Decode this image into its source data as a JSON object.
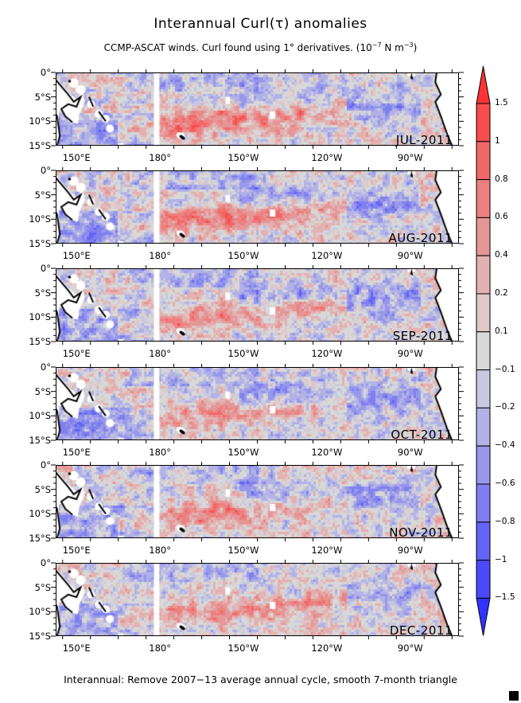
{
  "chart_data": {
    "type": "heatmap",
    "title": "Interannual Curl(τ) anomalies",
    "subtitle": {
      "text": "CCMP-ASCAT winds. Curl found using 1° derivatives. (10",
      "exp1": "−7",
      "unit": " N m",
      "exp2": "−3",
      "close": ")"
    },
    "footer": "Interannual: Remove 2007−13 average annual cycle, smooth 7-month triangle",
    "x_ticks": [
      "150°E",
      "180°",
      "150°W",
      "120°W",
      "90°W"
    ],
    "x_tick_lons": [
      150,
      180,
      210,
      240,
      270
    ],
    "x_range_lon": [
      142.5,
      287.5
    ],
    "y_ticks": [
      "0°",
      "5°S",
      "10°S",
      "15°S"
    ],
    "y_tick_lats": [
      0,
      -5,
      -10,
      -15
    ],
    "y_range_lat": [
      -15,
      0
    ],
    "panels": [
      {
        "label": "JUL-2011",
        "pattern": {
          "south_band_red": 0.75,
          "east_blue": 0.45,
          "west_blue": 0.35
        }
      },
      {
        "label": "AUG-2011",
        "pattern": {
          "south_band_red": 0.7,
          "east_blue": 0.5,
          "west_blue": 0.4
        }
      },
      {
        "label": "SEP-2011",
        "pattern": {
          "south_band_red": 0.6,
          "east_blue": 0.45,
          "west_blue": 0.35
        }
      },
      {
        "label": "OCT-2011",
        "pattern": {
          "south_band_red": 0.45,
          "east_blue": 0.45,
          "west_blue": 0.4
        }
      },
      {
        "label": "NOV-2011",
        "pattern": {
          "south_band_red": 0.55,
          "east_blue": 0.4,
          "west_blue": 0.35
        }
      },
      {
        "label": "DEC-2011",
        "pattern": {
          "south_band_red": 0.55,
          "east_blue": 0.25,
          "west_blue": 0.35
        }
      }
    ],
    "colorbar": {
      "levels": [
        1.5,
        1,
        0.8,
        0.6,
        0.4,
        0.2,
        0.1,
        -0.1,
        -0.2,
        -0.4,
        -0.6,
        -0.8,
        -1,
        -1.5
      ],
      "labels": [
        "1.5",
        "1",
        "0.8",
        "0.6",
        "0.4",
        "0.2",
        "0.1",
        "−0.1",
        "−0.2",
        "−0.4",
        "−0.6",
        "−0.8",
        "−1",
        "−1.5"
      ],
      "colors": [
        "#ff3333",
        "#f64d4d",
        "#f16767",
        "#ed7f7f",
        "#e59696",
        "#e3b1b1",
        "#dfc8c8",
        "#d8d8d8",
        "#c8c8e0",
        "#b2b2e6",
        "#9898ea",
        "#7f7fef",
        "#6363f5",
        "#4a4afb",
        "#3333ff"
      ],
      "extend": "both"
    }
  }
}
